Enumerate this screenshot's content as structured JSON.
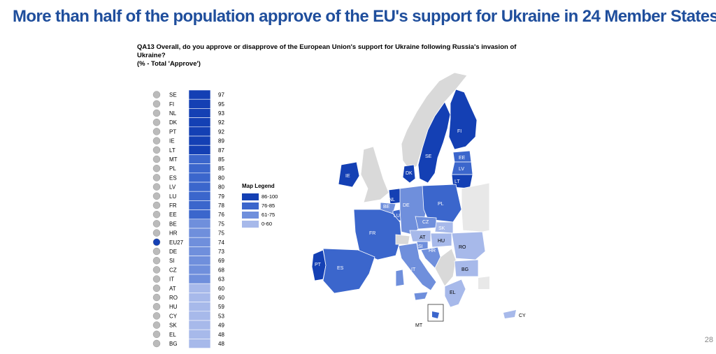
{
  "title": "More than half of the population approve of the EU's support for Ukraine in 24 Member States",
  "question": {
    "line1": "QA13 Overall, do you approve or disapprove of the European Union's support for Ukraine following Russia's invasion of",
    "line2": "Ukraine?",
    "line3": "(% - Total 'Approve')"
  },
  "page_number": "28",
  "legend": {
    "title": "Map Legend",
    "items": [
      {
        "label": "86-100",
        "color": "#1440b4"
      },
      {
        "label": "76-85",
        "color": "#3b66cc"
      },
      {
        "label": "61-75",
        "color": "#6f8fdc"
      },
      {
        "label": "0-60",
        "color": "#a7b9ea"
      }
    ]
  },
  "colors": {
    "band_86_100": "#1440b4",
    "band_76_85": "#3b66cc",
    "band_61_75": "#6f8fdc",
    "band_0_60": "#a7b9ea",
    "non_eu": "#d9d9d9",
    "title": "#1f4e9c"
  },
  "map_labels": [
    "FI",
    "SE",
    "EE",
    "LV",
    "LT",
    "DK",
    "IE",
    "NL",
    "BE",
    "LU",
    "DE",
    "PL",
    "CZ",
    "SK",
    "FR",
    "AT",
    "HU",
    "SI",
    "HR",
    "RO",
    "BG",
    "IT",
    "PT",
    "ES",
    "EL",
    "MT",
    "CY"
  ],
  "chart_data": {
    "type": "bar",
    "categories": [
      "SE",
      "FI",
      "NL",
      "DK",
      "PT",
      "IE",
      "LT",
      "MT",
      "PL",
      "ES",
      "LV",
      "LU",
      "FR",
      "EE",
      "BE",
      "HR",
      "EU27",
      "DE",
      "SI",
      "CZ",
      "IT",
      "AT",
      "RO",
      "HU",
      "CY",
      "SK",
      "EL",
      "BG"
    ],
    "values": [
      97,
      95,
      93,
      92,
      92,
      89,
      87,
      85,
      85,
      80,
      80,
      79,
      78,
      76,
      75,
      75,
      74,
      73,
      69,
      68,
      63,
      60,
      60,
      59,
      53,
      49,
      48,
      48
    ],
    "xlim": [
      0,
      100
    ],
    "orientation": "horizontal"
  }
}
